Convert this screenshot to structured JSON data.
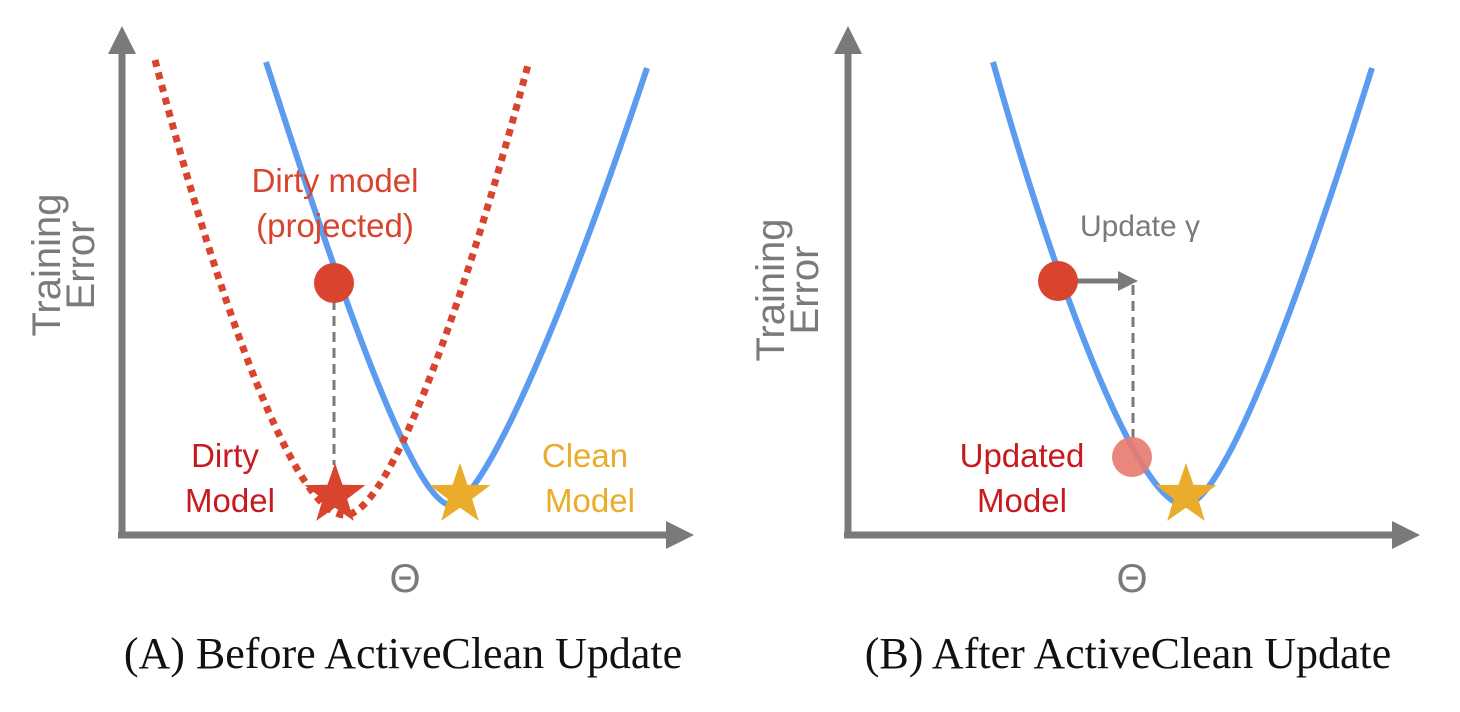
{
  "colors": {
    "axis": "#7a7a7a",
    "clean_curve": "#5b9bf0",
    "dirty_curve": "#d9442e",
    "dirty_text": "#d9442e",
    "dirty_model_text": "#c8191e",
    "clean_star": "#eaac2a",
    "updated_point": "#e87a6e",
    "guide": "#7a7a7a",
    "caption": "#111111"
  },
  "panel_a": {
    "caption": "(A) Before ActiveClean Update",
    "y_axis_label_line1": "Training",
    "y_axis_label_line2": "Error",
    "x_axis_label": "Θ",
    "dirty_projected_line1": "Dirty model",
    "dirty_projected_line2": "(projected)",
    "dirty_model_line1": "Dirty",
    "dirty_model_line2": "Model",
    "clean_model_line1": "Clean",
    "clean_model_line2": "Model",
    "icons": [
      "circle-marker",
      "star-marker-red",
      "star-marker-gold"
    ]
  },
  "panel_b": {
    "caption": "(B) After ActiveClean Update",
    "y_axis_label_line1": "Training",
    "y_axis_label_line2": "Error",
    "x_axis_label": "Θ",
    "update_label": "Update γ",
    "updated_model_line1": "Updated",
    "updated_model_line2": "Model",
    "icons": [
      "circle-marker",
      "circle-marker-light",
      "star-marker-gold",
      "arrow-right"
    ]
  }
}
